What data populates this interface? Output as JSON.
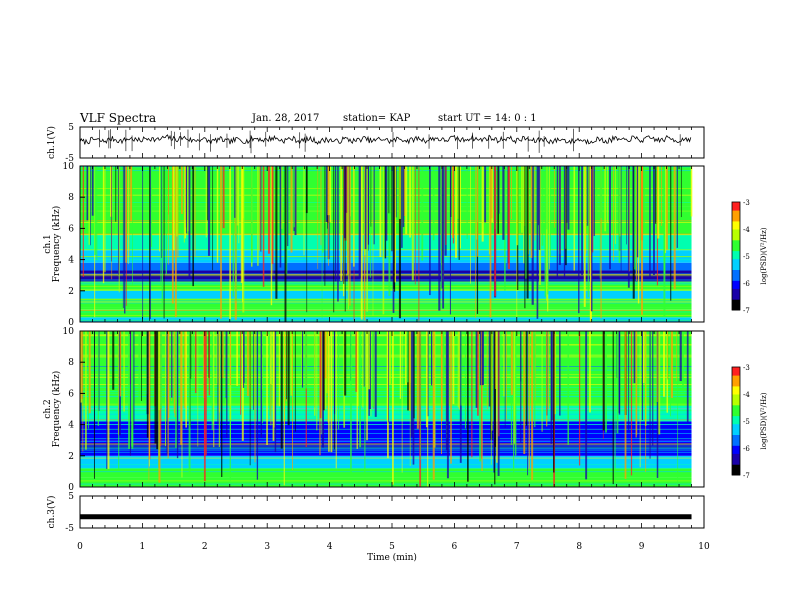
{
  "header": {
    "title": "VLF Spectra",
    "date": "Jan. 28, 2017",
    "station": "station= KAP",
    "start_ut": "start UT =  14: 0 : 1"
  },
  "colormap": [
    "#000000",
    "#1a00a8",
    "#0000ff",
    "#0070ff",
    "#00d0ff",
    "#00ffb0",
    "#30ff30",
    "#b8ff00",
    "#ffff00",
    "#ffa000",
    "#ff2020",
    "#ffffff"
  ],
  "chart_data": [
    {
      "type": "line",
      "panel": "ch1-waveform",
      "ylabel": "ch.1(V)",
      "ylim": [
        -5,
        5
      ],
      "yticks": [
        -5,
        5
      ],
      "x": [
        0,
        0.5,
        1,
        1.5,
        2,
        2.5,
        3,
        3.5,
        4,
        4.5,
        5,
        5.5,
        6,
        6.5,
        7,
        7.5,
        8,
        8.5,
        9,
        9.5,
        9.8
      ],
      "values": [
        0.5,
        0.8,
        1.0,
        1.4,
        0.7,
        0.6,
        1.2,
        0.8,
        0.6,
        0.9,
        0.8,
        1.0,
        1.1,
        1.2,
        1.0,
        0.7,
        0.6,
        0.8,
        1.1,
        1.0,
        0.9
      ],
      "xlim": [
        0,
        10
      ]
    },
    {
      "type": "heatmap",
      "panel": "ch1-spectrogram",
      "ylabel": "ch.1",
      "ylabel2": "Frequency (kHz)",
      "ylim": [
        0,
        10
      ],
      "yticks": [
        0,
        2,
        4,
        6,
        8,
        10
      ],
      "xlim": [
        0,
        10
      ],
      "data_end_min": 9.8,
      "colorbar": {
        "label": "log(PSD)(V²/Hz)",
        "range": [
          -7,
          -3
        ],
        "ticks": [
          -7,
          -6,
          -5,
          -4,
          -3
        ]
      },
      "bands_khz": [
        {
          "from": 0,
          "to": 0.3,
          "level": 0.45
        },
        {
          "from": 0.3,
          "to": 0.9,
          "level": 0.55
        },
        {
          "from": 0.9,
          "to": 1.5,
          "level": 0.62
        },
        {
          "from": 1.5,
          "to": 2.0,
          "level": 0.45
        },
        {
          "from": 2.0,
          "to": 2.6,
          "level": 0.55
        },
        {
          "from": 2.6,
          "to": 3.3,
          "level": 0.18
        },
        {
          "from": 3.3,
          "to": 3.8,
          "level": 0.32
        },
        {
          "from": 3.8,
          "to": 4.6,
          "level": 0.45
        },
        {
          "from": 4.6,
          "to": 5.6,
          "level": 0.52
        },
        {
          "from": 5.6,
          "to": 7.4,
          "level": 0.58
        },
        {
          "from": 7.4,
          "to": 10,
          "level": 0.55
        }
      ]
    },
    {
      "type": "heatmap",
      "panel": "ch2-spectrogram",
      "ylabel": "ch.2",
      "ylabel2": "Frequency (kHz)",
      "ylim": [
        0,
        10
      ],
      "yticks": [
        0,
        2,
        4,
        6,
        8,
        10
      ],
      "xlim": [
        0,
        10
      ],
      "data_end_min": 9.8,
      "colorbar": {
        "label": "log(PSD)(V²/Hz)",
        "range": [
          -7,
          -3
        ],
        "ticks": [
          -7,
          -6,
          -5,
          -4,
          -3
        ]
      },
      "bands_khz": [
        {
          "from": 0,
          "to": 0.6,
          "level": 0.55
        },
        {
          "from": 0.6,
          "to": 1.2,
          "level": 0.6
        },
        {
          "from": 1.2,
          "to": 2.0,
          "level": 0.4
        },
        {
          "from": 2.0,
          "to": 3.0,
          "level": 0.22
        },
        {
          "from": 3.0,
          "to": 4.2,
          "level": 0.25
        },
        {
          "from": 4.2,
          "to": 5.2,
          "level": 0.5
        },
        {
          "from": 5.2,
          "to": 7.0,
          "level": 0.58
        },
        {
          "from": 7.0,
          "to": 10,
          "level": 0.6
        }
      ]
    },
    {
      "type": "line",
      "panel": "ch3-waveform",
      "ylabel": "ch.3(V)",
      "ylim": [
        -5,
        5
      ],
      "yticks": [
        -5,
        5
      ],
      "x": [
        0,
        9.8
      ],
      "values": [
        -1.5,
        -1.5
      ],
      "xlim": [
        0,
        10
      ],
      "xlabel": "Time (min)",
      "xticks": [
        0,
        1,
        2,
        3,
        4,
        5,
        6,
        7,
        8,
        9,
        10
      ]
    }
  ]
}
